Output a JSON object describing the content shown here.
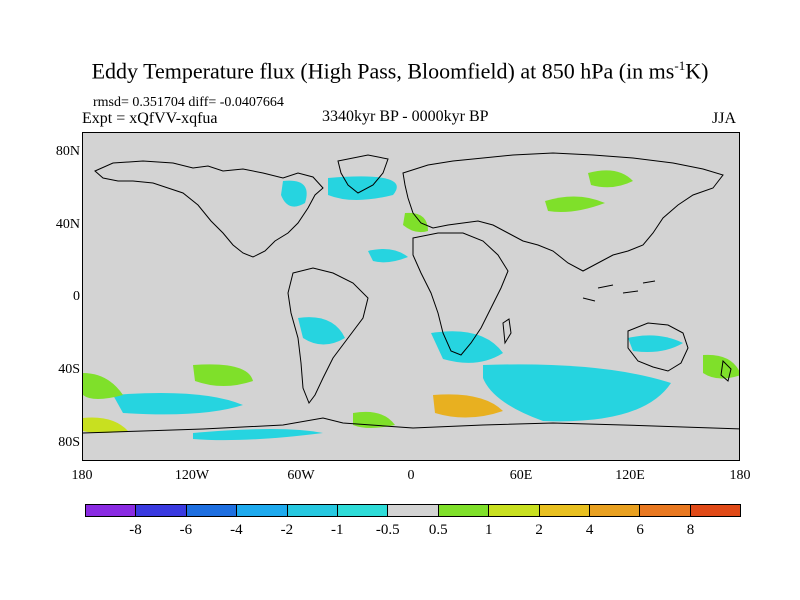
{
  "title": {
    "main": "Eddy Temperature flux (High Pass, Bloomfield) at 850 hPa (in ms",
    "sup": "-1",
    "tail": "K)"
  },
  "stats": "rmsd= 0.351704 diff= -0.0407664",
  "expt": "Expt = xQfVV-xqfua",
  "period": "3340kyr BP - 0000kyr BP",
  "season": "JJA",
  "lat_labels": [
    "80N",
    "40N",
    "0",
    "40S",
    "80S"
  ],
  "lon_labels": [
    "180",
    "120W",
    "60W",
    "0",
    "60E",
    "120E",
    "180"
  ],
  "colorbar": {
    "colors": [
      "#8a2be2",
      "#3a3ae0",
      "#1e6fe0",
      "#1eaaee",
      "#26c8e0",
      "#2edcd8",
      "#d3d3d3",
      "#7fe02a",
      "#c8e020",
      "#e8c020",
      "#e8a020",
      "#e87820",
      "#e04a18"
    ],
    "labels": [
      "-8",
      "-6",
      "-4",
      "-2",
      "-1",
      "-0.5",
      "0.5",
      "1",
      "2",
      "4",
      "6",
      "8"
    ]
  },
  "map": {
    "background": "#d3d3d3",
    "negative_color": "#26d4e0",
    "weak_negative_color": "#2edcd8",
    "positive_color": "#7fe02a",
    "strong_positive_color": "#c8e020",
    "warm_color": "#e8b020"
  }
}
